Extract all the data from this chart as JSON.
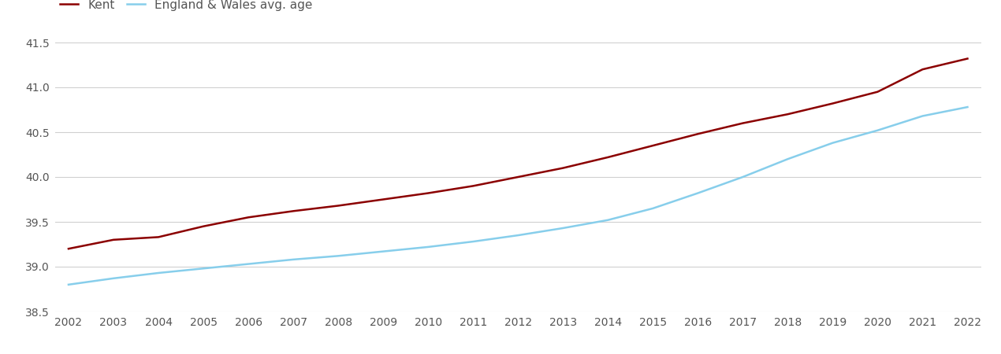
{
  "years": [
    2002,
    2003,
    2004,
    2005,
    2006,
    2007,
    2008,
    2009,
    2010,
    2011,
    2012,
    2013,
    2014,
    2015,
    2016,
    2017,
    2018,
    2019,
    2020,
    2021,
    2022
  ],
  "kent": [
    39.2,
    39.3,
    39.33,
    39.45,
    39.55,
    39.62,
    39.68,
    39.75,
    39.82,
    39.9,
    40.0,
    40.1,
    40.22,
    40.35,
    40.48,
    40.6,
    40.7,
    40.82,
    40.95,
    41.2,
    41.32
  ],
  "england_wales": [
    38.8,
    38.87,
    38.93,
    38.98,
    39.03,
    39.08,
    39.12,
    39.17,
    39.22,
    39.28,
    39.35,
    39.43,
    39.52,
    39.65,
    39.82,
    40.0,
    40.2,
    40.38,
    40.52,
    40.68,
    40.78
  ],
  "kent_color": "#8B0000",
  "ew_color": "#87CEEB",
  "kent_label": "Kent",
  "ew_label": "England & Wales avg. age",
  "ylim": [
    38.5,
    41.5
  ],
  "yticks": [
    38.5,
    39.0,
    39.5,
    40.0,
    40.5,
    41.0,
    41.5
  ],
  "background_color": "#ffffff",
  "grid_color": "#d0d0d0",
  "line_width": 1.8,
  "tick_label_color": "#555555",
  "legend_fontsize": 11,
  "tick_fontsize": 10
}
